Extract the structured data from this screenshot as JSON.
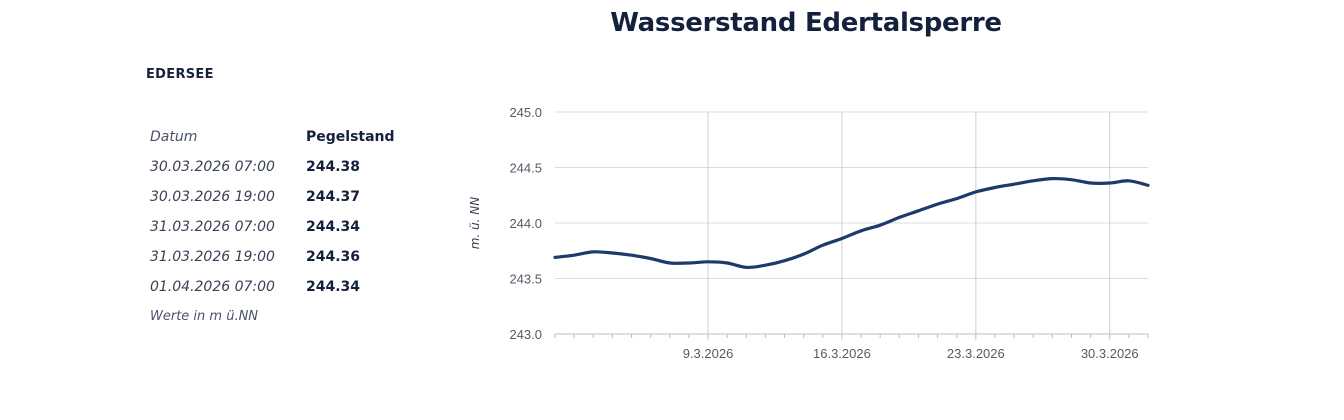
{
  "page": {
    "title": "Wasserstand Edertalsperre",
    "station": "EDERSEE"
  },
  "table": {
    "header": {
      "date": "Datum",
      "level": "Pegelstand"
    },
    "rows": [
      {
        "date": "30.03.2026 07:00",
        "level": "244.38"
      },
      {
        "date": "30.03.2026 19:00",
        "level": "244.37"
      },
      {
        "date": "31.03.2026 07:00",
        "level": "244.34"
      },
      {
        "date": "31.03.2026 19:00",
        "level": "244.36"
      },
      {
        "date": "01.04.2026 07:00",
        "level": "244.34"
      }
    ],
    "note": "Werte in m ü.NN"
  },
  "colors": {
    "line": "#1d3a6b",
    "grid": "#dcdcdc",
    "text": "#14213d"
  },
  "chart_data": {
    "type": "line",
    "title": "",
    "ylabel": "m. ü. NN",
    "xlabel": "",
    "ylim": [
      243.0,
      245.0
    ],
    "yticks": [
      243.0,
      243.5,
      244.0,
      244.5,
      245.0
    ],
    "yticklabels": [
      "243.0",
      "243.5",
      "244.0",
      "244.5",
      "245.0"
    ],
    "xlim": [
      "2026-03-01",
      "2026-04-01"
    ],
    "xticks": [
      "2026-03-09",
      "2026-03-16",
      "2026-03-23",
      "2026-03-30"
    ],
    "xticklabels": [
      "9.3.2026",
      "16.3.2026",
      "23.3.2026",
      "30.3.2026"
    ],
    "grid": true,
    "series": [
      {
        "name": "",
        "x": [
          "2026-03-01",
          "2026-03-02",
          "2026-03-03",
          "2026-03-04",
          "2026-03-05",
          "2026-03-06",
          "2026-03-07",
          "2026-03-08",
          "2026-03-09",
          "2026-03-10",
          "2026-03-11",
          "2026-03-12",
          "2026-03-13",
          "2026-03-14",
          "2026-03-15",
          "2026-03-16",
          "2026-03-17",
          "2026-03-18",
          "2026-03-19",
          "2026-03-20",
          "2026-03-21",
          "2026-03-22",
          "2026-03-23",
          "2026-03-24",
          "2026-03-25",
          "2026-03-26",
          "2026-03-27",
          "2026-03-28",
          "2026-03-29",
          "2026-03-30",
          "2026-03-31",
          "2026-04-01"
        ],
        "values": [
          243.69,
          243.71,
          243.74,
          243.73,
          243.71,
          243.68,
          243.64,
          243.64,
          243.65,
          243.64,
          243.6,
          243.62,
          243.66,
          243.72,
          243.8,
          243.86,
          243.93,
          243.98,
          244.05,
          244.11,
          244.17,
          244.22,
          244.28,
          244.32,
          244.35,
          244.38,
          244.4,
          244.39,
          244.36,
          244.36,
          244.38,
          244.34
        ]
      }
    ]
  }
}
